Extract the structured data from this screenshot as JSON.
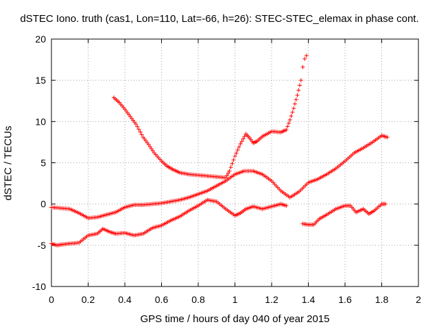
{
  "chart_data": {
    "type": "scatter",
    "title": "dSTEC Iono. truth (cas1, Lon=110, Lat=-66, h=26): STEC-STEC_elemax in phase cont.",
    "xlabel": "GPS time / hours of day 040 of year 2015",
    "ylabel": "dSTEC  / TECUs",
    "xlim": [
      0,
      2
    ],
    "ylim": [
      -10,
      20
    ],
    "x_ticks": [
      "0",
      "0.2",
      "0.4",
      "0.6",
      "0.8",
      "1",
      "1.2",
      "1.4",
      "1.6",
      "1.8",
      "2"
    ],
    "y_ticks": [
      "-10",
      "-5",
      "0",
      "5",
      "10",
      "15",
      "20"
    ],
    "grid": true,
    "marker": "+",
    "color": "#ff0000",
    "series": [
      {
        "x": [
          0.0,
          0.05,
          0.1,
          0.15,
          0.2,
          0.25,
          0.3,
          0.35,
          0.4,
          0.45,
          0.5,
          0.55,
          0.6,
          0.65,
          0.7,
          0.75,
          0.8,
          0.85,
          0.9,
          0.95,
          1.0,
          1.05,
          1.1,
          1.15,
          1.2,
          1.25,
          1.3,
          1.35,
          1.4,
          1.45,
          1.5,
          1.55,
          1.6,
          1.65,
          1.7,
          1.75,
          1.8,
          1.83
        ],
        "y": [
          -0.4,
          -0.5,
          -0.6,
          -1.1,
          -1.7,
          -1.6,
          -1.3,
          -1.0,
          -0.4,
          -0.1,
          -0.1,
          0.0,
          0.1,
          0.3,
          0.5,
          0.8,
          1.2,
          1.6,
          2.2,
          2.8,
          3.6,
          4.0,
          4.0,
          3.6,
          2.8,
          1.6,
          0.8,
          1.5,
          2.6,
          3.0,
          3.6,
          4.3,
          5.2,
          6.2,
          6.8,
          7.5,
          8.3,
          8.1
        ]
      },
      {
        "x": [
          0.0,
          0.03,
          0.06,
          0.1,
          0.15,
          0.2,
          0.25,
          0.28,
          0.32,
          0.35,
          0.4,
          0.45,
          0.5,
          0.55,
          0.6,
          0.65,
          0.7,
          0.75,
          0.8,
          0.85,
          0.9,
          0.95,
          1.0,
          1.03,
          1.06,
          1.1,
          1.15,
          1.2,
          1.25,
          1.28
        ],
        "y": [
          -4.8,
          -5.0,
          -4.9,
          -4.8,
          -4.7,
          -3.8,
          -3.6,
          -3.0,
          -3.4,
          -3.6,
          -3.5,
          -3.8,
          -3.6,
          -2.9,
          -2.6,
          -2.0,
          -1.5,
          -0.8,
          -0.2,
          0.5,
          0.3,
          -0.6,
          -1.4,
          -1.1,
          -0.6,
          -0.3,
          -0.6,
          -0.3,
          0.0,
          -0.2
        ]
      },
      {
        "x": [
          0.34,
          0.37,
          0.4,
          0.43,
          0.46,
          0.5,
          0.53,
          0.56,
          0.6,
          0.63,
          0.66,
          0.7,
          0.75,
          0.8,
          0.85,
          0.9,
          0.95,
          0.97,
          1.0,
          1.03,
          1.06,
          1.08,
          1.1,
          1.12,
          1.15,
          1.2,
          1.25,
          1.28,
          1.3,
          1.32,
          1.34,
          1.36,
          1.37,
          1.38,
          1.39
        ],
        "y": [
          12.9,
          12.3,
          11.5,
          10.6,
          9.7,
          8.1,
          7.2,
          6.2,
          5.2,
          4.6,
          4.2,
          3.8,
          3.6,
          3.5,
          3.4,
          3.3,
          3.2,
          4.0,
          5.8,
          7.3,
          8.5,
          8.0,
          7.4,
          7.6,
          8.2,
          8.8,
          8.7,
          9.0,
          10.2,
          11.6,
          13.2,
          15.0,
          16.6,
          17.6,
          18.0
        ]
      },
      {
        "x": [
          1.37,
          1.4,
          1.43,
          1.46,
          1.5,
          1.55,
          1.6,
          1.63,
          1.66,
          1.7,
          1.73,
          1.76,
          1.8,
          1.82
        ],
        "y": [
          -2.4,
          -2.5,
          -2.5,
          -1.8,
          -1.3,
          -0.6,
          -0.2,
          -0.2,
          -1.0,
          -0.6,
          -1.2,
          -0.8,
          0.0,
          0.0
        ]
      }
    ]
  }
}
